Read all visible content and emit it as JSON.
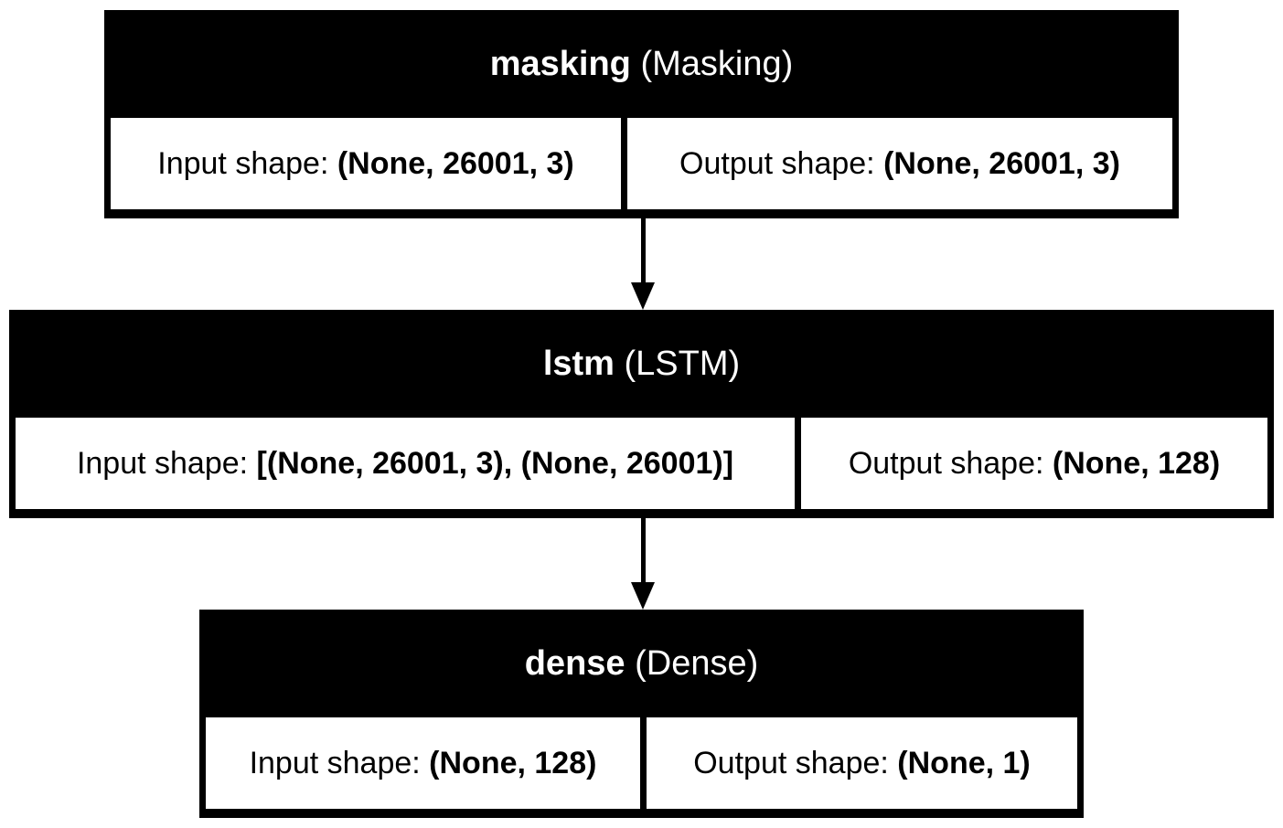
{
  "layers": [
    {
      "name": "masking",
      "type": "(Masking)",
      "input_label": "Input shape: ",
      "input_value": "(None, 26001, 3)",
      "output_label": "Output shape: ",
      "output_value": "(None, 26001, 3)"
    },
    {
      "name": "lstm",
      "type": "(LSTM)",
      "input_label": "Input shape: ",
      "input_value": "[(None, 26001, 3), (None, 26001)]",
      "output_label": "Output shape: ",
      "output_value": "(None, 128)"
    },
    {
      "name": "dense",
      "type": "(Dense)",
      "input_label": "Input shape: ",
      "input_value": "(None, 128)",
      "output_label": "Output shape: ",
      "output_value": "(None, 1)"
    }
  ]
}
